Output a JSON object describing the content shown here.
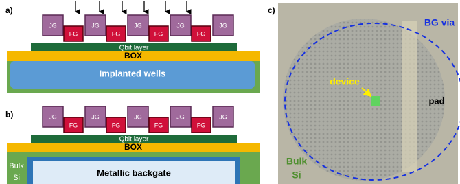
{
  "panel_a": {
    "label": "a)",
    "gates": [
      "JG",
      "FG",
      "JG",
      "FG",
      "JG",
      "FG",
      "JG",
      "FG",
      "JG"
    ],
    "qbit_layer": "Qbit layer",
    "box": "BOX",
    "wells": "Implanted wells"
  },
  "panel_b": {
    "label": "b)",
    "gates": [
      "JG",
      "FG",
      "JG",
      "FG",
      "JG",
      "FG",
      "JG",
      "FG",
      "JG"
    ],
    "qbit_layer": "Qbit layer",
    "box": "BOX",
    "bulk_si": [
      "Bulk",
      "Si"
    ],
    "backgate": "Metallic backgate"
  },
  "panel_c": {
    "label": "c)",
    "bg_via": "BG via",
    "device": "device",
    "pad": "pad",
    "bulk_si": [
      "Bulk",
      "Si"
    ]
  }
}
